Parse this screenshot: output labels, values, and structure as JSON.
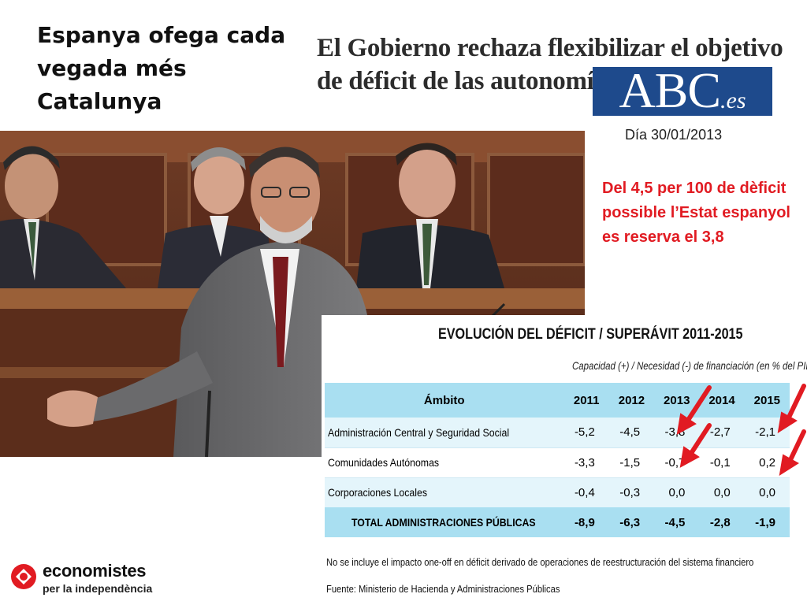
{
  "slide": {
    "title": "Espanya ofega cada vegada més Catalunya",
    "headline": "El Gobierno rechaza flexibilizar el objetivo de déficit de las autonomías",
    "date": "Día 30/01/2013",
    "note": "Del 4,5 per 100 de dèficit possible l’Estat espanyol es reserva el 3,8"
  },
  "abc_logo": {
    "main": "ABC",
    "suffix": ".es",
    "color": "#1e4a8c"
  },
  "logo": {
    "name": "economistes",
    "tagline": "per la independència",
    "icon": "economistes-mark-icon",
    "color": "#e11b22"
  },
  "table": {
    "title": "EVOLUCIÓN DEL DÉFICIT / SUPERÁVIT 2011-2015",
    "subtitle": "Capacidad (+) / Necesidad (-) de financiación (en % del PIB)",
    "columns": [
      "Ámbito",
      "2011",
      "2012",
      "2013",
      "2014",
      "2015"
    ],
    "rows": [
      {
        "label": "Administración Central y Seguridad Social",
        "values": [
          "-5,2",
          "-4,5",
          "-3,8",
          "-2,7",
          "-2,1"
        ]
      },
      {
        "label": "Comunidades Autónomas",
        "values": [
          "-3,3",
          "-1,5",
          "-0,7",
          "-0,1",
          "0,2"
        ]
      },
      {
        "label": "Corporaciones Locales",
        "values": [
          "-0,4",
          "-0,3",
          "0,0",
          "0,0",
          "0,0"
        ]
      },
      {
        "label": "TOTAL ADMINISTRACIONES PÚBLICAS",
        "values": [
          "-8,9",
          "-6,3",
          "-4,5",
          "-2,8",
          "-1,9"
        ]
      }
    ],
    "footnote": "No se incluye el impacto one-off en déficit derivado de operaciones de reestructuración del sistema financiero",
    "source": "Fuente: Ministerio de Hacienda y Administraciones Públicas",
    "header_color": "#a9dff1",
    "row_color": "#e4f5fb",
    "arrow_color": "#e11b22"
  }
}
